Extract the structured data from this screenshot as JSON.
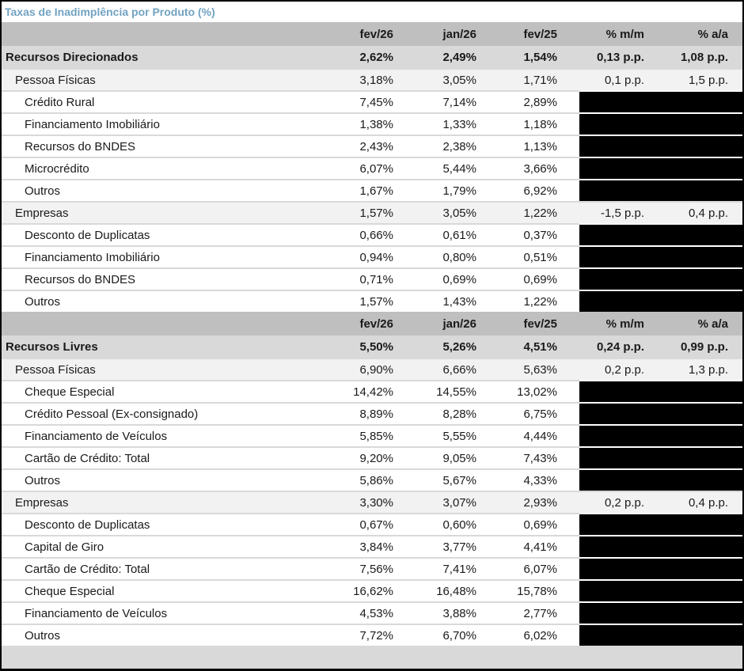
{
  "chart_data": {
    "type": "table",
    "title": "Taxas de Inadimplência por Produto (%)",
    "columns": [
      "fev/26",
      "jan/26",
      "fev/25",
      "% m/m",
      "% a/a"
    ],
    "sections": [
      {
        "rows": [
          {
            "label": "Recursos Direcionados",
            "level": 0,
            "style": "total",
            "redacted": false,
            "values": [
              "2,62%",
              "2,49%",
              "1,54%",
              "0,13 p.p.",
              "1,08 p.p."
            ]
          },
          {
            "label": "Pessoa Físicas",
            "level": 1,
            "style": "sub",
            "redacted": false,
            "values": [
              "3,18%",
              "3,05%",
              "1,71%",
              "0,1 p.p.",
              "1,5 p.p."
            ]
          },
          {
            "label": "Crédito Rural",
            "level": 2,
            "style": "leaf",
            "redacted": true,
            "values": [
              "7,45%",
              "7,14%",
              "2,89%"
            ]
          },
          {
            "label": "Financiamento Imobiliário",
            "level": 2,
            "style": "leaf",
            "redacted": true,
            "values": [
              "1,38%",
              "1,33%",
              "1,18%"
            ]
          },
          {
            "label": "Recursos do BNDES",
            "level": 2,
            "style": "leaf",
            "redacted": true,
            "values": [
              "2,43%",
              "2,38%",
              "1,13%"
            ]
          },
          {
            "label": "Microcrédito",
            "level": 2,
            "style": "leaf",
            "redacted": true,
            "values": [
              "6,07%",
              "5,44%",
              "3,66%"
            ]
          },
          {
            "label": "Outros",
            "level": 2,
            "style": "leaf",
            "redacted": true,
            "values": [
              "1,67%",
              "1,79%",
              "6,92%"
            ]
          },
          {
            "label": "Empresas",
            "level": 1,
            "style": "sub",
            "redacted": false,
            "values": [
              "1,57%",
              "3,05%",
              "1,22%",
              "-1,5 p.p.",
              "0,4 p.p."
            ]
          },
          {
            "label": "Desconto de Duplicatas",
            "level": 2,
            "style": "leaf",
            "redacted": true,
            "values": [
              "0,66%",
              "0,61%",
              "0,37%"
            ]
          },
          {
            "label": "Financiamento Imobiliário",
            "level": 2,
            "style": "leaf",
            "redacted": true,
            "values": [
              "0,94%",
              "0,80%",
              "0,51%"
            ]
          },
          {
            "label": "Recursos do BNDES",
            "level": 2,
            "style": "leaf",
            "redacted": true,
            "values": [
              "0,71%",
              "0,69%",
              "0,69%"
            ]
          },
          {
            "label": "Outros",
            "level": 2,
            "style": "leaf",
            "redacted": true,
            "values": [
              "1,57%",
              "1,43%",
              "1,22%"
            ]
          }
        ]
      },
      {
        "rows": [
          {
            "label": "Recursos Livres",
            "level": 0,
            "style": "total",
            "redacted": false,
            "values": [
              "5,50%",
              "5,26%",
              "4,51%",
              "0,24 p.p.",
              "0,99 p.p."
            ]
          },
          {
            "label": "Pessoa Físicas",
            "level": 1,
            "style": "sub",
            "redacted": false,
            "values": [
              "6,90%",
              "6,66%",
              "5,63%",
              "0,2 p.p.",
              "1,3 p.p."
            ]
          },
          {
            "label": "Cheque Especial",
            "level": 2,
            "style": "leaf",
            "redacted": true,
            "values": [
              "14,42%",
              "14,55%",
              "13,02%"
            ]
          },
          {
            "label": "Crédito Pessoal (Ex-consignado)",
            "level": 2,
            "style": "leaf",
            "redacted": true,
            "values": [
              "8,89%",
              "8,28%",
              "6,75%"
            ]
          },
          {
            "label": "Financiamento de Veículos",
            "level": 2,
            "style": "leaf",
            "redacted": true,
            "values": [
              "5,85%",
              "5,55%",
              "4,44%"
            ]
          },
          {
            "label": "Cartão de Crédito: Total",
            "level": 2,
            "style": "leaf",
            "redacted": true,
            "values": [
              "9,20%",
              "9,05%",
              "7,43%"
            ]
          },
          {
            "label": "Outros",
            "level": 2,
            "style": "leaf",
            "redacted": true,
            "values": [
              "5,86%",
              "5,67%",
              "4,33%"
            ]
          },
          {
            "label": "Empresas",
            "level": 1,
            "style": "sub",
            "redacted": false,
            "values": [
              "3,30%",
              "3,07%",
              "2,93%",
              "0,2 p.p.",
              "0,4 p.p."
            ]
          },
          {
            "label": "Desconto de Duplicatas",
            "level": 2,
            "style": "leaf",
            "redacted": true,
            "values": [
              "0,67%",
              "0,60%",
              "0,69%"
            ]
          },
          {
            "label": "Capital de Giro",
            "level": 2,
            "style": "leaf",
            "redacted": true,
            "values": [
              "3,84%",
              "3,77%",
              "4,41%"
            ]
          },
          {
            "label": "Cartão de Crédito: Total",
            "level": 2,
            "style": "leaf",
            "redacted": true,
            "values": [
              "7,56%",
              "7,41%",
              "6,07%"
            ]
          },
          {
            "label": "Cheque Especial",
            "level": 2,
            "style": "leaf",
            "redacted": true,
            "values": [
              "16,62%",
              "16,48%",
              "15,78%"
            ]
          },
          {
            "label": "Financiamento de Veículos",
            "level": 2,
            "style": "leaf",
            "redacted": true,
            "values": [
              "4,53%",
              "3,88%",
              "2,77%"
            ]
          },
          {
            "label": "Outros",
            "level": 2,
            "style": "leaf",
            "redacted": true,
            "values": [
              "7,72%",
              "6,70%",
              "6,02%"
            ]
          }
        ]
      }
    ],
    "layout": {
      "legend": "none",
      "grid": "row-separators",
      "note": "black cells mask % m/m and % a/a for leaf rows"
    },
    "colors": {
      "title_text": "#72A3C1",
      "header_bg": "#BFBFBF",
      "total_bg": "#D9D9D9",
      "sub_bg": "#F2F2F2",
      "redacted_bg": "#000000",
      "footer_bg": "#D9D9D9",
      "separator": "#D9D9D9"
    }
  }
}
